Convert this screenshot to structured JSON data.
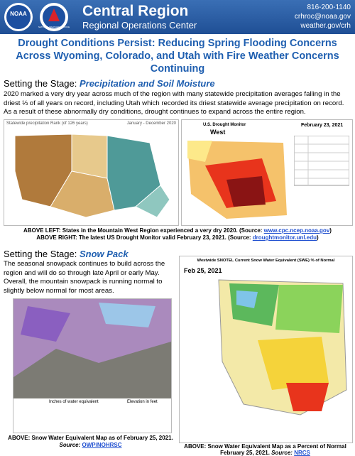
{
  "header": {
    "logo_left": "NOAA",
    "logo_right": "NATIONAL WEATHER SERVICE",
    "title": "Central Region",
    "subtitle": "Regional Operations Center",
    "phone": "816-200-1140",
    "email": "crhroc@noaa.gov",
    "web": "weather.gov/crh"
  },
  "title": "Drought Conditions Persist: Reducing Spring Flooding Concerns Across Wyoming, Colorado, and Utah with Fire Weather Concerns Continuing",
  "section1": {
    "heading": "Setting the Stage: ",
    "heading_em": "Precipitation and Soil Moisture",
    "text": "2020 marked a very dry year across much of the region with many statewide precipitation averages falling in the driest ⅓ of all years on record, including Utah which recorded its driest statewide average precipitation on record. As a result of these abnormally dry conditions, drought continues to expand across the entire region.",
    "map_left": {
      "title": "Statewide precipitation Rank (of 126 years)",
      "period": "January - December 2020"
    },
    "map_right": {
      "title": "U.S. Drought Monitor",
      "region": "West",
      "date": "February 23, 2021"
    },
    "caption_left": {
      "before": "ABOVE LEFT: States in the Mountain West Region experienced a very dry 2020. (Source: ",
      "link": "www.cpc.ncep.noaa.gov",
      "after": ")"
    },
    "caption_right": {
      "before": "ABOVE RIGHT: The latest US Drought Monitor valid February 23, 2021. (Source: ",
      "link": "droughtmonitor.unl.edu",
      "after": ")"
    }
  },
  "section2": {
    "heading": "Setting the Stage: ",
    "heading_em": "Snow Pack",
    "text": "The seasonal snowpack continues to build across the region and will do so through late April or early May. Overall, the mountain snowpack is running normal to slightly below normal for most areas.",
    "map_left": {
      "legend_left": "Inches of water equivalent",
      "legend_right": "Elevation in feet"
    },
    "map_right": {
      "title": "Westwide SNOTEL Current Snow Water Equivalent (SWE) % of Normal",
      "date": "Feb 25, 2021"
    },
    "caption_left": {
      "line1": "ABOVE: Snow Water Equivalent Map as of February 25, 2021.",
      "source": "Source: ",
      "link": "OWP/NOHRSC"
    },
    "caption_right": {
      "line1": "ABOVE: Snow Water Equivalent Map as a Percent of Normal",
      "line2": "February 25, 2021. ",
      "source": "Source: ",
      "link": "NRCS"
    }
  }
}
